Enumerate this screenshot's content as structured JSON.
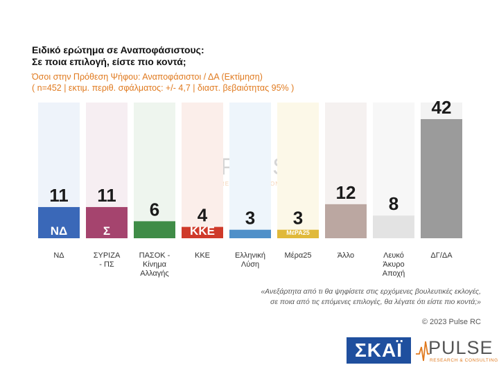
{
  "title_line1": "Ειδικό ερώτημα σε Αναποφάσιστους:",
  "title_line2": "Σε ποια επιλογή, είστε πιο κοντά;",
  "subtitle_line1": "Όσοι στην Πρόθεση Ψήφου: Αναποφάσιστοι / ΔΑ   (Εκτίμηση)",
  "subtitle_line2": "( n=452  |  εκτιμ. περιθ. σφάλματος: +/- 4,7  |  διαστ. βεβαιότητας 95% )",
  "footnote_line1": "«Ανεξάρτητα από τι θα ψηφίσετε στις ερχόμενες βουλευτικές εκλογές,",
  "footnote_line2": "σε ποια από τις επόμενες επιλογές, θα λέγατε ότι είστε πιο κοντά;»",
  "copyright": "© 2023 Pulse RC",
  "logos": {
    "skai": "ΣΚΑΪ",
    "pulse": "PULSE",
    "pulse_sub": "RESEARCH & CONSULTING"
  },
  "chart_data": {
    "type": "bar",
    "categories": [
      [
        "ΝΔ"
      ],
      [
        "ΣΥΡΙΖΑ",
        "- ΠΣ"
      ],
      [
        "ΠΑΣΟΚ -",
        "Κίνημα",
        "Αλλαγής"
      ],
      [
        "ΚΚΕ"
      ],
      [
        "Ελληνική",
        "Λύση"
      ],
      [
        "Μέρα25"
      ],
      [
        "Άλλο"
      ],
      [
        "Λευκό",
        "Άκυρο",
        "Αποχή"
      ],
      [
        "ΔΓ/ΔΑ"
      ]
    ],
    "values": [
      11,
      11,
      6,
      4,
      3,
      3,
      12,
      8,
      42
    ],
    "logo_texts": [
      "ΝΔ",
      "Σ",
      "",
      "ΚΚΕ",
      "",
      "ΜέΡΑ25",
      "",
      "",
      ""
    ],
    "colors": [
      "#3a68b8",
      "#a5446e",
      "#3f8c47",
      "#cf3a2a",
      "#4f90c9",
      "#e0b93a",
      "#bba7a1",
      "#e3e3e3",
      "#9b9b9b"
    ],
    "bg_colors": [
      "#eef3fa",
      "#f6eef2",
      "#eef5ee",
      "#fbeeea",
      "#eef5fb",
      "#fcf8e8",
      "#f5f1f0",
      "#f7f7f7",
      "#f3f3f3"
    ],
    "ylim": [
      0,
      42
    ]
  }
}
